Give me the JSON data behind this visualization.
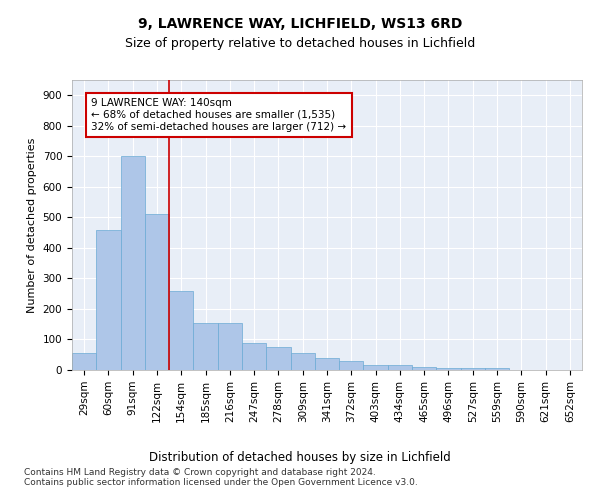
{
  "title1": "9, LAWRENCE WAY, LICHFIELD, WS13 6RD",
  "title2": "Size of property relative to detached houses in Lichfield",
  "xlabel": "Distribution of detached houses by size in Lichfield",
  "ylabel": "Number of detached properties",
  "categories": [
    "29sqm",
    "60sqm",
    "91sqm",
    "122sqm",
    "154sqm",
    "185sqm",
    "216sqm",
    "247sqm",
    "278sqm",
    "309sqm",
    "341sqm",
    "372sqm",
    "403sqm",
    "434sqm",
    "465sqm",
    "496sqm",
    "527sqm",
    "559sqm",
    "590sqm",
    "621sqm",
    "652sqm"
  ],
  "values": [
    55,
    460,
    700,
    510,
    260,
    155,
    155,
    90,
    75,
    55,
    40,
    30,
    18,
    18,
    10,
    8,
    5,
    5,
    0,
    0,
    0
  ],
  "bar_color": "#aec6e8",
  "bar_edge_color": "#6aaad4",
  "vline_color": "#cc0000",
  "vline_x": 3.5,
  "annotation_text": "9 LAWRENCE WAY: 140sqm\n← 68% of detached houses are smaller (1,535)\n32% of semi-detached houses are larger (712) →",
  "annotation_box_facecolor": "#ffffff",
  "annotation_box_edgecolor": "#cc0000",
  "background_color": "#e8eef7",
  "footer_text": "Contains HM Land Registry data © Crown copyright and database right 2024.\nContains public sector information licensed under the Open Government Licence v3.0.",
  "ylim": [
    0,
    950
  ],
  "yticks": [
    0,
    100,
    200,
    300,
    400,
    500,
    600,
    700,
    800,
    900
  ],
  "title1_fontsize": 10,
  "title2_fontsize": 9,
  "xlabel_fontsize": 8.5,
  "ylabel_fontsize": 8,
  "tick_fontsize": 7.5,
  "annot_fontsize": 7.5,
  "footer_fontsize": 6.5
}
